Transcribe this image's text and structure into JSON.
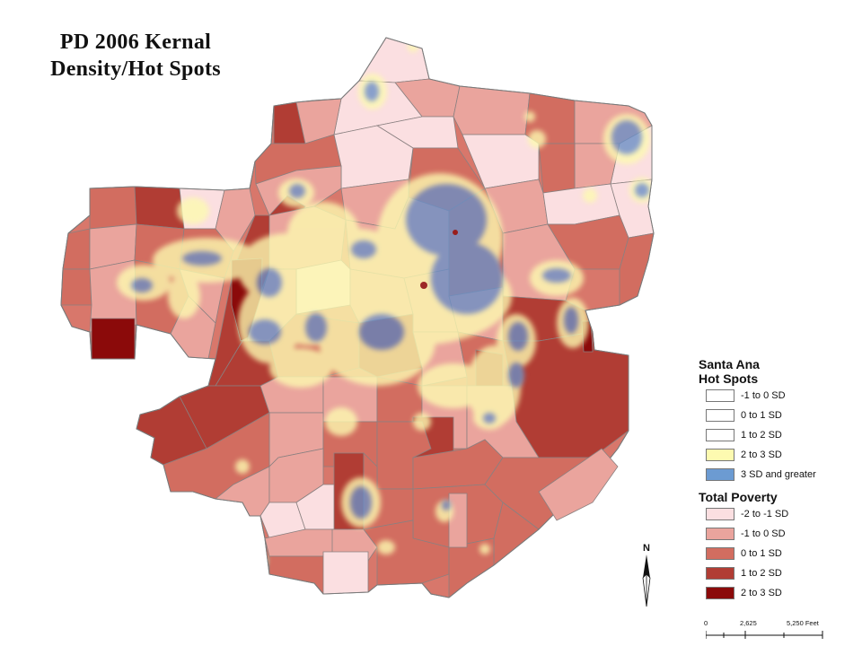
{
  "title": {
    "line1": "PD 2006 Kernal",
    "line2": "Density/Hot Spots"
  },
  "legend": {
    "hot_spots": {
      "title_line1": "Santa Ana",
      "title_line2": "Hot Spots",
      "items": [
        {
          "label": "-1 to 0 SD",
          "color": "#ffffff"
        },
        {
          "label": "0 to 1 SD",
          "color": "#ffffff"
        },
        {
          "label": "1 to 2 SD",
          "color": "#ffffff"
        },
        {
          "label": "2 to 3 SD",
          "color": "#fdfab0"
        },
        {
          "label": "3 SD and greater",
          "color": "#6c9bd2"
        }
      ]
    },
    "poverty": {
      "title": "Total Poverty",
      "items": [
        {
          "label": "-2 to -1 SD",
          "color": "#fbdfe1"
        },
        {
          "label": "-1 to 0 SD",
          "color": "#eaa49d"
        },
        {
          "label": "0 to 1 SD",
          "color": "#d26d60"
        },
        {
          "label": "1 to 2 SD",
          "color": "#b13d34"
        },
        {
          "label": "2 to 3 SD",
          "color": "#8b0a0a"
        }
      ]
    }
  },
  "north_arrow": {
    "label": "N"
  },
  "scale_bar": {
    "ticks": [
      "0",
      "2,625",
      "5,250 Feet"
    ]
  }
}
